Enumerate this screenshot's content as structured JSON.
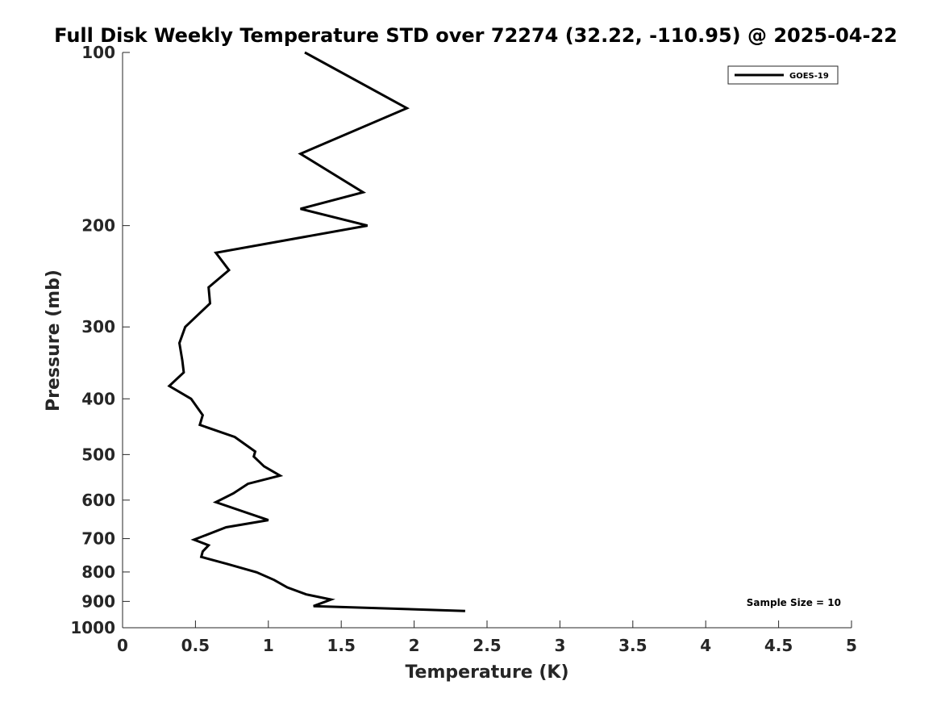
{
  "chart_data": {
    "type": "line",
    "title": "Full Disk Weekly Temperature STD over 72274 (32.22, -110.95) @ 2025-04-22",
    "xlabel": "Temperature (K)",
    "ylabel": "Pressure (mb)",
    "xlim": [
      0,
      5
    ],
    "ylim": [
      100,
      1000
    ],
    "y_scale": "log",
    "y_reversed": true,
    "x_ticks": [
      0,
      0.5,
      1,
      1.5,
      2,
      2.5,
      3,
      3.5,
      4,
      4.5,
      5
    ],
    "x_tick_labels": [
      "0",
      "0.5",
      "1",
      "1.5",
      "2",
      "2.5",
      "3",
      "3.5",
      "4",
      "4.5",
      "5"
    ],
    "y_ticks": [
      100,
      200,
      300,
      400,
      500,
      600,
      700,
      800,
      900,
      1000
    ],
    "y_tick_labels": [
      "100",
      "200",
      "300",
      "400",
      "500",
      "600",
      "700",
      "800",
      "900",
      "1000"
    ],
    "grid": false,
    "legend": {
      "position": "top-right"
    },
    "annotation": "Sample Size = 10",
    "series": [
      {
        "name": "GOES-19",
        "color": "#000000",
        "points": [
          [
            1.25,
            100
          ],
          [
            1.95,
            125
          ],
          [
            1.22,
            150
          ],
          [
            1.65,
            175
          ],
          [
            1.22,
            187
          ],
          [
            1.68,
            200
          ],
          [
            0.64,
            223
          ],
          [
            0.73,
            239
          ],
          [
            0.59,
            256
          ],
          [
            0.6,
            273
          ],
          [
            0.43,
            300
          ],
          [
            0.39,
            320
          ],
          [
            0.41,
            343
          ],
          [
            0.42,
            360
          ],
          [
            0.32,
            380
          ],
          [
            0.47,
            400
          ],
          [
            0.55,
            427
          ],
          [
            0.53,
            444
          ],
          [
            0.77,
            466
          ],
          [
            0.91,
            494
          ],
          [
            0.9,
            504
          ],
          [
            0.97,
            524
          ],
          [
            1.08,
            544
          ],
          [
            0.86,
            562
          ],
          [
            0.76,
            584
          ],
          [
            0.64,
            605
          ],
          [
            1.0,
            650
          ],
          [
            0.71,
            669
          ],
          [
            0.49,
            703
          ],
          [
            0.59,
            719
          ],
          [
            0.55,
            737
          ],
          [
            0.54,
            753
          ],
          [
            0.72,
            775
          ],
          [
            0.92,
            801
          ],
          [
            1.04,
            826
          ],
          [
            1.13,
            851
          ],
          [
            1.26,
            875
          ],
          [
            1.43,
            893
          ],
          [
            1.31,
            917
          ],
          [
            2.35,
            935
          ]
        ]
      }
    ]
  }
}
